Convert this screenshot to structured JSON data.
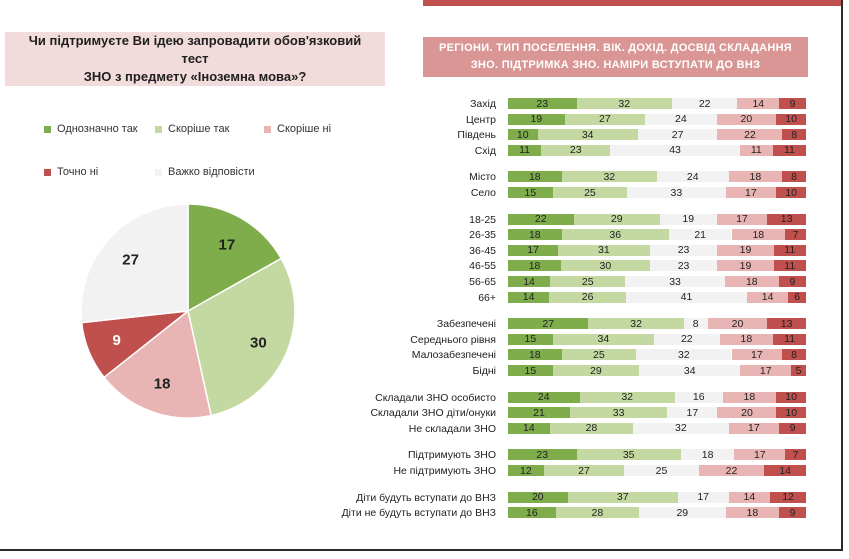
{
  "question": {
    "line1": "Чи підтримуєте Ви ідею запровадити обов'язковий тест",
    "line2": "ЗНО з предмету «Іноземна мова»?"
  },
  "regions_header": {
    "line1": "РЕГІОНИ. ТИП ПОСЕЛЕННЯ. ВІК. ДОХІД. ДОСВІД  СКЛАДАННЯ",
    "line2": "ЗНО. ПІДТРИМКА ЗНО. НАМІРИ ВСТУПАТИ ДО ВНЗ"
  },
  "colors": {
    "definitely_yes": "#7fad4c",
    "rather_yes": "#c4d9a2",
    "rather_no": "#e8b5b4",
    "definitely_no": "#c0504d",
    "hard_to_say": "#f2f2f2",
    "header_bg": "#d99694",
    "question_bg": "#f2dcdb"
  },
  "legend": [
    {
      "label": "Однозначно так",
      "color_key": "definitely_yes"
    },
    {
      "label": "Скоріше  так",
      "color_key": "rather_yes"
    },
    {
      "label": "Скоріше  ні",
      "color_key": "rather_no"
    },
    {
      "label": "Точно ні",
      "color_key": "definitely_no"
    },
    {
      "label": "Важко відповісти",
      "color_key": "hard_to_say"
    }
  ],
  "chart_data": [
    {
      "type": "pie",
      "title": "Чи підтримуєте Ви ідею запровадити обов'язковий тест ЗНО з предмету «Іноземна мова»?",
      "categories": [
        "Однозначно так",
        "Скоріше  так",
        "Скоріше  ні",
        "Точно ні",
        "Важко відповісти"
      ],
      "values": [
        17,
        30,
        18,
        9,
        27
      ]
    },
    {
      "type": "bar",
      "orientation": "horizontal-stacked-100",
      "title": "РЕГІОНИ. ТИП ПОСЕЛЕННЯ. ВІК. ДОХІД. ДОСВІД  СКЛАДАННЯ ЗНО. ПІДТРИМКА ЗНО. НАМІРИ ВСТУПАТИ ДО ВНЗ",
      "series_order": [
        "Однозначно так",
        "Скоріше  так",
        "Важко відповісти",
        "Скоріше  ні",
        "Точно ні"
      ],
      "groups": [
        {
          "rows": [
            {
              "label": "Захід",
              "values": [
                23,
                32,
                22,
                14,
                9
              ]
            },
            {
              "label": "Центр",
              "values": [
                19,
                27,
                24,
                20,
                10
              ]
            },
            {
              "label": "Південь",
              "values": [
                10,
                34,
                27,
                22,
                8
              ]
            },
            {
              "label": "Схід",
              "values": [
                11,
                23,
                43,
                11,
                11
              ]
            }
          ]
        },
        {
          "rows": [
            {
              "label": "Місто",
              "values": [
                18,
                32,
                24,
                18,
                8
              ]
            },
            {
              "label": "Село",
              "values": [
                15,
                25,
                33,
                17,
                10
              ]
            }
          ]
        },
        {
          "rows": [
            {
              "label": "18-25",
              "values": [
                22,
                29,
                19,
                17,
                13
              ]
            },
            {
              "label": "26-35",
              "values": [
                18,
                36,
                21,
                18,
                7
              ]
            },
            {
              "label": "36-45",
              "values": [
                17,
                31,
                23,
                19,
                11
              ]
            },
            {
              "label": "46-55",
              "values": [
                18,
                30,
                23,
                19,
                11
              ]
            },
            {
              "label": "56-65",
              "values": [
                14,
                25,
                33,
                18,
                9
              ]
            },
            {
              "label": "66+",
              "values": [
                14,
                26,
                41,
                14,
                6
              ]
            }
          ]
        },
        {
          "rows": [
            {
              "label": "Забезпечені",
              "values": [
                27,
                32,
                8,
                20,
                13
              ]
            },
            {
              "label": "Середнього рівня",
              "values": [
                15,
                34,
                22,
                18,
                11
              ]
            },
            {
              "label": "Малозабезпечені",
              "values": [
                18,
                25,
                32,
                17,
                8
              ]
            },
            {
              "label": "Бідні",
              "values": [
                15,
                29,
                34,
                17,
                5
              ]
            }
          ]
        },
        {
          "rows": [
            {
              "label": "Складали ЗНО особисто",
              "values": [
                24,
                32,
                16,
                18,
                10
              ]
            },
            {
              "label": "Складали ЗНО діти/онуки",
              "values": [
                21,
                33,
                17,
                20,
                10
              ]
            },
            {
              "label": "Не складали ЗНО",
              "values": [
                14,
                28,
                32,
                17,
                9
              ]
            }
          ]
        },
        {
          "rows": [
            {
              "label": "Підтримують ЗНО",
              "values": [
                23,
                35,
                18,
                17,
                7
              ]
            },
            {
              "label": "Не підтримують ЗНО",
              "values": [
                12,
                27,
                25,
                22,
                14
              ]
            }
          ]
        },
        {
          "rows": [
            {
              "label": "Діти будуть вступати до ВНЗ",
              "values": [
                20,
                37,
                17,
                14,
                12
              ]
            },
            {
              "label": "Діти не будуть вступати до ВНЗ",
              "values": [
                16,
                28,
                29,
                18,
                9
              ]
            }
          ]
        }
      ]
    }
  ]
}
